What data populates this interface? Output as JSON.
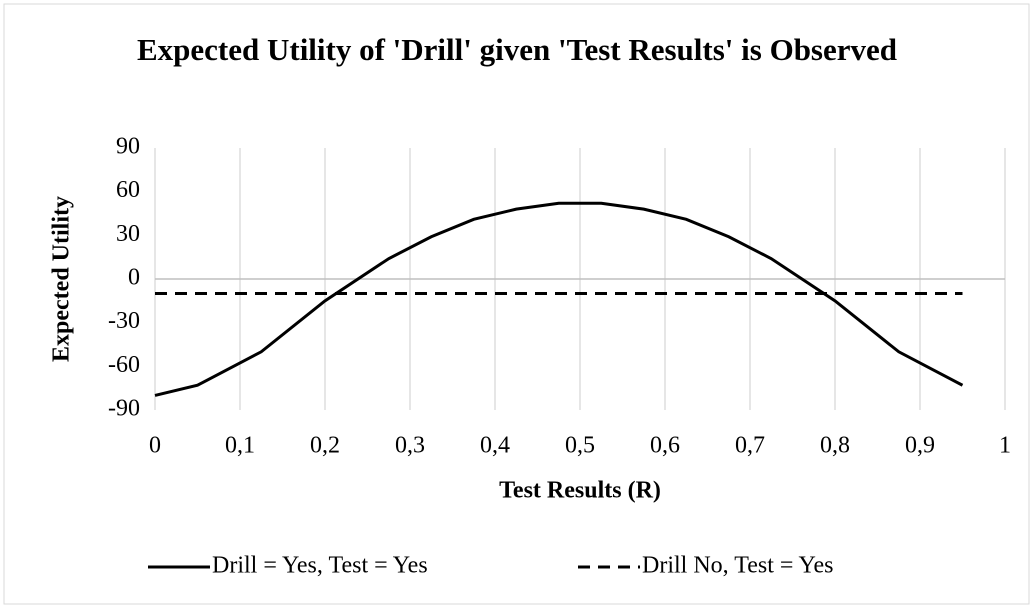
{
  "chart_data": {
    "type": "line",
    "title": "Expected Utility of 'Drill' given 'Test Results' is Observed",
    "x_label": "Test Results (R)",
    "y_label": "Expected Utility",
    "x": [
      0,
      0.05,
      0.125,
      0.2,
      0.275,
      0.325,
      0.375,
      0.425,
      0.475,
      0.525,
      0.575,
      0.625,
      0.675,
      0.725,
      0.8,
      0.875,
      0.95
    ],
    "series": [
      {
        "name": "Drill = Yes, Test = Yes",
        "color": "#000000",
        "dash": false,
        "values": [
          -80,
          -73,
          -50,
          -15,
          14,
          29,
          41,
          48,
          52,
          52,
          48,
          41,
          29,
          14,
          -15,
          -50,
          -73
        ]
      },
      {
        "name": "Drill No, Test = Yes",
        "color": "#000000",
        "dash": true,
        "values": [
          -10,
          -10,
          -10,
          -10,
          -10,
          -10,
          -10,
          -10,
          -10,
          -10,
          -10,
          -10,
          -10,
          -10,
          -10,
          -10,
          -10
        ]
      }
    ],
    "xlim": [
      0,
      1
    ],
    "xticks": [
      0,
      {
        "value": 0.1,
        "label": "0,1"
      },
      {
        "value": 0.2,
        "label": "0,2"
      },
      {
        "value": 0.3,
        "label": "0,3"
      },
      {
        "value": 0.4,
        "label": "0,4"
      },
      {
        "value": 0.5,
        "label": "0,5"
      },
      {
        "value": 0.6,
        "label": "0,6"
      },
      {
        "value": 0.7,
        "label": "0,7"
      },
      {
        "value": 0.8,
        "label": "0,8"
      },
      {
        "value": 0.9,
        "label": "0,9"
      },
      1
    ],
    "ylim": [
      -90,
      90
    ],
    "yticks": [
      90,
      60,
      30,
      0,
      -30,
      -60,
      -90
    ],
    "grid": "x",
    "legend": "bottom"
  }
}
